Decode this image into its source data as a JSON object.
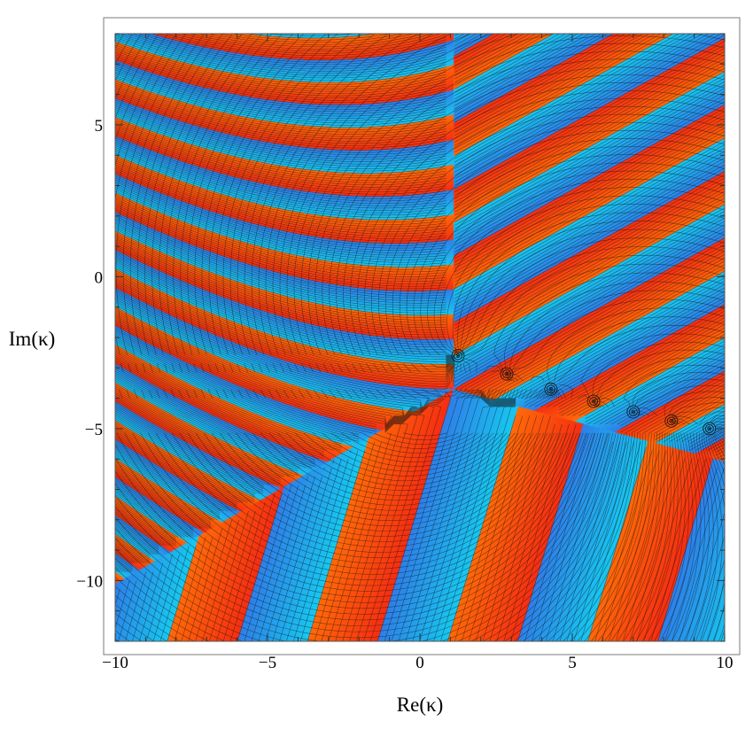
{
  "chart_data": {
    "type": "heatmap",
    "title": "",
    "xlabel": "Re(κ)",
    "ylabel": "Im(κ)",
    "xlim": [
      -10,
      10
    ],
    "ylim": [
      -12,
      8
    ],
    "x_ticks": [
      {
        "value": -10,
        "label": "−10"
      },
      {
        "value": -5,
        "label": "−5"
      },
      {
        "value": 0,
        "label": "0"
      },
      {
        "value": 5,
        "label": "5"
      },
      {
        "value": 10,
        "label": "10"
      }
    ],
    "y_ticks": [
      {
        "value": 5,
        "label": "5"
      },
      {
        "value": 0,
        "label": "0"
      },
      {
        "value": -5,
        "label": "−5"
      },
      {
        "value": -10,
        "label": "−10"
      }
    ],
    "grid": false,
    "colormap": [
      "#2e7fe8",
      "#17c8f0",
      "#ff6a08",
      "#f52e12"
    ],
    "singular_points": [
      {
        "x": 1.25,
        "y": -2.6
      },
      {
        "x": 2.85,
        "y": -3.2
      },
      {
        "x": 4.3,
        "y": -3.7
      },
      {
        "x": 5.7,
        "y": -4.1
      },
      {
        "x": 7.0,
        "y": -4.45
      },
      {
        "x": 8.25,
        "y": -4.75
      },
      {
        "x": 9.5,
        "y": -5.0
      }
    ]
  }
}
